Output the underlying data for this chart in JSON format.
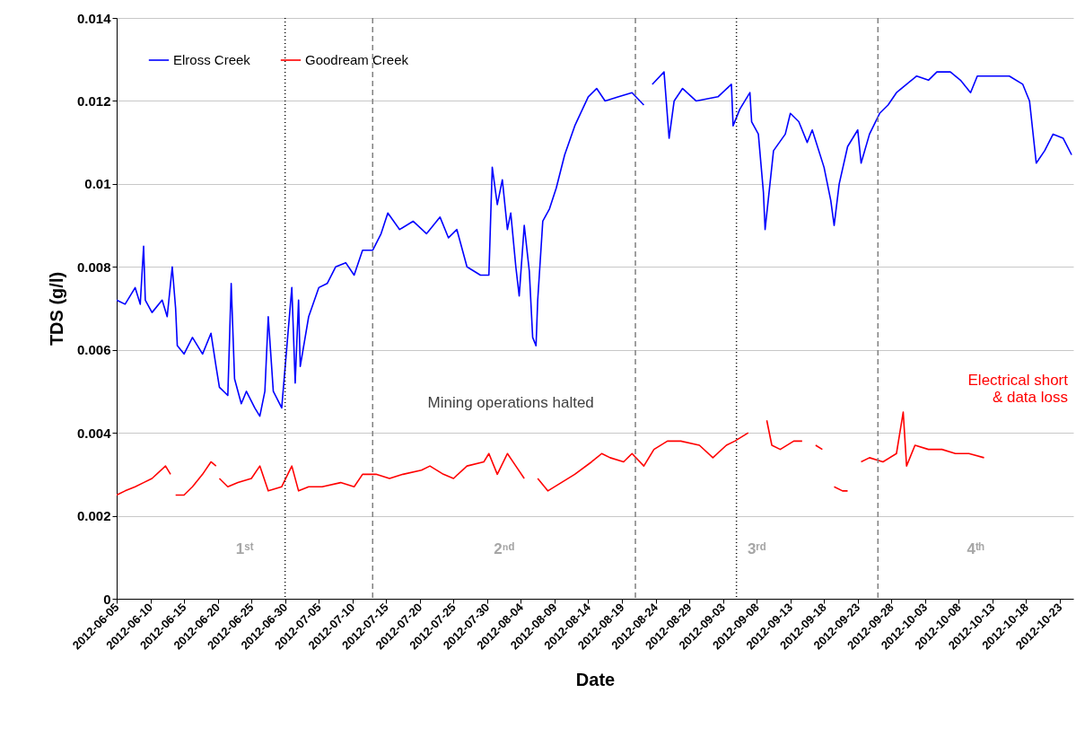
{
  "chart_data": {
    "type": "line",
    "xlabel": "Date",
    "ylabel": "TDS (g/l)",
    "ylim": [
      0,
      0.014
    ],
    "yticks": [
      0,
      0.002,
      0.004,
      0.006,
      0.008,
      0.01,
      0.012,
      0.014
    ],
    "xlim": [
      "2012-06-05",
      "2012-10-25"
    ],
    "xticks": [
      "2012-06-05",
      "2012-06-10",
      "2012-06-15",
      "2012-06-20",
      "2012-06-25",
      "2012-06-30",
      "2012-07-05",
      "2012-07-10",
      "2012-07-15",
      "2012-07-20",
      "2012-07-25",
      "2012-07-30",
      "2012-08-04",
      "2012-08-09",
      "2012-08-14",
      "2012-08-19",
      "2012-08-24",
      "2012-08-29",
      "2012-09-03",
      "2012-09-08",
      "2012-09-13",
      "2012-09-18",
      "2012-09-23",
      "2012-09-28",
      "2012-10-03",
      "2012-10-08",
      "2012-10-13",
      "2012-10-18",
      "2012-10-23"
    ],
    "grid": "y",
    "legend": "top left",
    "line_style": "solid",
    "marker": "none",
    "series": [
      {
        "name": "Elross Creek",
        "color": "#0000ff",
        "x": [
          "2012-06-05T00:00",
          "2012-06-06T06:00",
          "2012-06-07T18:00",
          "2012-06-08T12:00",
          "2012-06-09T00:00",
          "2012-06-09T06:00",
          "2012-06-10T06:00",
          "2012-06-11T18:00",
          "2012-06-12T12:00",
          "2012-06-13T00:00",
          "2012-06-13T06:00",
          "2012-06-13T18:00",
          "2012-06-14T00:00",
          "2012-06-15T00:00",
          "2012-06-16T06:00",
          "2012-06-17T18:00",
          "2012-06-19T00:00",
          "2012-06-19T18:00",
          "2012-06-20T06:00",
          "2012-06-21T12:00",
          "2012-06-22T00:00",
          "2012-06-22T12:00",
          "2012-06-23T12:00",
          "2012-06-24T06:00",
          "2012-06-25T12:00",
          "2012-06-26T06:00",
          "2012-06-27T00:00",
          "2012-06-27T12:00",
          "2012-06-28T06:00",
          "2012-06-29T12:00",
          "2012-07-01T00:00",
          "2012-07-01T12:00",
          "2012-07-02T00:00",
          "2012-07-02T06:00",
          "2012-07-03T12:00",
          "2012-07-05T00:00",
          "2012-07-06T06:00",
          "2012-07-07T12:00",
          "2012-07-09T00:00",
          "2012-07-10T06:00",
          "2012-07-11T12:00",
          "2012-07-13T00:00",
          "2012-07-14T06:00",
          "2012-07-15T06:00",
          "2012-07-17T00:00",
          "2012-07-19T00:00",
          "2012-07-21T00:00",
          "2012-07-23T00:00",
          "2012-07-24T06:00",
          "2012-07-25T12:00",
          "2012-07-27T00:00",
          "2012-07-29T00:00",
          "2012-07-30T06:00",
          "2012-07-30T18:00",
          "2012-07-31T12:00",
          "2012-08-01T06:00",
          "2012-08-02T00:00",
          "2012-08-02T12:00",
          "2012-08-03T06:00",
          "2012-08-03T18:00",
          "2012-08-04T12:00",
          "2012-08-05T06:00",
          "2012-08-05T18:00",
          "2012-08-06T06:00",
          "2012-08-06T12:00",
          "2012-08-07T06:00",
          "2012-08-08T06:00",
          "2012-08-09T06:00",
          "2012-08-10T12:00",
          "2012-08-12T00:00",
          "2012-08-14T00:00",
          "2012-08-15T06:00",
          "2012-08-16T12:00",
          "2012-08-18T12:00",
          "2012-08-20T12:00",
          "2012-08-22T06:00",
          "2012-08-23T00:00",
          "2012-08-23T12:00",
          "2012-08-25T06:00",
          "2012-08-26T00:00",
          "2012-08-26T18:00",
          "2012-08-28T00:00",
          "2012-08-30T00:00",
          "2012-09-02T06:00",
          "2012-09-04T06:00",
          "2012-09-04T12:00",
          "2012-09-05T12:00",
          "2012-09-07T00:00",
          "2012-09-07T06:00",
          "2012-09-08T06:00",
          "2012-09-09T00:00",
          "2012-09-09T06:00",
          "2012-09-10T12:00",
          "2012-09-12T06:00",
          "2012-09-13T00:00",
          "2012-09-14T06:00",
          "2012-09-15T12:00",
          "2012-09-16T06:00",
          "2012-09-18T00:00",
          "2012-09-19T00:00",
          "2012-09-19T12:00",
          "2012-09-20T06:00",
          "2012-09-21T12:00",
          "2012-09-23T00:00",
          "2012-09-23T12:00",
          "2012-09-24T18:00",
          "2012-09-26T06:00",
          "2012-09-27T12:00",
          "2012-09-28T18:00",
          "2012-09-30T06:00",
          "2012-10-01T18:00",
          "2012-10-03T12:00",
          "2012-10-04T18:00",
          "2012-10-06T18:00",
          "2012-10-08T06:00",
          "2012-10-09T18:00",
          "2012-10-10T18:00",
          "2012-10-13T12:00",
          "2012-10-15T12:00",
          "2012-10-17T12:00",
          "2012-10-18T12:00",
          "2012-10-19T12:00",
          "2012-10-20T18:00",
          "2012-10-22T00:00",
          "2012-10-23T12:00",
          "2012-10-24T18:00"
        ],
        "values": [
          0.0072,
          0.0071,
          0.0075,
          0.0071,
          0.0085,
          0.0072,
          0.0069,
          0.0072,
          0.0068,
          0.0076,
          0.008,
          0.007,
          0.0061,
          0.0059,
          0.0063,
          0.0059,
          0.0064,
          0.0056,
          0.0051,
          0.0049,
          0.0076,
          0.0053,
          0.0047,
          0.005,
          0.0046,
          0.0044,
          0.005,
          0.0068,
          0.005,
          0.0046,
          0.0075,
          0.0052,
          0.0072,
          0.0056,
          0.0068,
          0.0075,
          0.0076,
          0.008,
          0.0081,
          0.0078,
          0.0084,
          0.0084,
          0.0088,
          0.0093,
          0.0089,
          0.0091,
          0.0088,
          0.0092,
          0.0087,
          0.0089,
          0.008,
          0.0078,
          0.0078,
          0.0104,
          0.0095,
          0.0101,
          0.0089,
          0.0093,
          0.008,
          0.0073,
          0.009,
          0.0079,
          0.0063,
          0.0061,
          0.0072,
          0.0091,
          0.0094,
          0.0099,
          0.0107,
          0.0114,
          0.0121,
          0.0123,
          0.012,
          0.0121,
          0.0122,
          0.0119,
          null,
          0.0124,
          0.0127,
          0.0111,
          0.012,
          0.0123,
          0.012,
          0.0121,
          0.0124,
          0.0114,
          0.0118,
          0.0122,
          0.0115,
          0.0112,
          0.0098,
          0.0089,
          0.0108,
          0.0112,
          0.0117,
          0.0115,
          0.011,
          0.0113,
          0.0104,
          0.0096,
          0.009,
          0.01,
          0.0109,
          0.0113,
          0.0105,
          0.0112,
          0.0117,
          0.0119,
          0.0122,
          0.0124,
          0.0126,
          0.0125,
          0.0127,
          0.0127,
          0.0125,
          0.0122,
          0.0126,
          0.0126,
          0.0126,
          0.0124,
          0.012,
          0.0105,
          0.0108,
          0.0112,
          0.0111,
          0.0107
        ]
      },
      {
        "name": "Goodream Creek",
        "color": "#ff0000",
        "x": [
          "2012-06-05T00:00",
          "2012-06-06T06:00",
          "2012-06-07T18:00",
          "2012-06-09T00:00",
          "2012-06-10T06:00",
          "2012-06-12T06:00",
          "2012-06-13T00:00",
          "2012-06-13T06:00",
          "2012-06-13T18:00",
          "2012-06-15T00:00",
          "2012-06-16T06:00",
          "2012-06-17T18:00",
          "2012-06-19T00:00",
          "2012-06-19T18:00",
          "2012-06-20T00:00",
          "2012-06-20T06:00",
          "2012-06-21T12:00",
          "2012-06-23T00:00",
          "2012-06-25T00:00",
          "2012-06-26T06:00",
          "2012-06-27T12:00",
          "2012-06-29T12:00",
          "2012-07-01T00:00",
          "2012-07-02T00:00",
          "2012-07-03T12:00",
          "2012-07-05T12:00",
          "2012-07-08T06:00",
          "2012-07-10T06:00",
          "2012-07-11T12:00",
          "2012-07-13T12:00",
          "2012-07-15T12:00",
          "2012-07-17T12:00",
          "2012-07-20T06:00",
          "2012-07-21T12:00",
          "2012-07-23T12:00",
          "2012-07-25T00:00",
          "2012-07-27T00:00",
          "2012-07-29T12:00",
          "2012-07-30T06:00",
          "2012-07-31T12:00",
          "2012-08-02T00:00",
          "2012-08-03T06:00",
          "2012-08-04T12:00",
          "2012-08-05T00:00",
          "2012-08-06T12:00",
          "2012-08-08T00:00",
          "2012-08-10T00:00",
          "2012-08-12T00:00",
          "2012-08-14T12:00",
          "2012-08-16T00:00",
          "2012-08-17T06:00",
          "2012-08-19T06:00",
          "2012-08-20T12:00",
          "2012-08-22T06:00",
          "2012-08-23T18:00",
          "2012-08-25T18:00",
          "2012-08-27T18:00",
          "2012-08-30T12:00",
          "2012-09-01T12:00",
          "2012-09-03T12:00",
          "2012-09-04T18:00",
          "2012-09-06T18:00",
          "2012-09-07T06:00",
          "2012-09-09T12:00",
          "2012-09-10T06:00",
          "2012-09-11T12:00",
          "2012-09-13T12:00",
          "2012-09-14T18:00",
          "2012-09-15T12:00",
          "2012-09-16T18:00",
          "2012-09-17T18:00",
          "2012-09-18T06:00",
          "2012-09-19T12:00",
          "2012-09-20T18:00",
          "2012-09-21T12:00",
          "2012-09-22T00:00",
          "2012-09-23T12:00",
          "2012-09-24T18:00",
          "2012-09-26T18:00",
          "2012-09-28T18:00",
          "2012-09-29T18:00",
          "2012-09-30T06:00",
          "2012-10-01T12:00",
          "2012-10-03T12:00",
          "2012-10-05T12:00",
          "2012-10-07T12:00",
          "2012-10-09T12:00",
          "2012-10-11T18:00"
        ],
        "values": [
          0.0025,
          0.0026,
          0.0027,
          0.0028,
          0.0029,
          0.0032,
          0.003,
          null,
          0.0025,
          0.0025,
          0.0027,
          0.003,
          0.0033,
          0.0032,
          null,
          0.0029,
          0.0027,
          0.0028,
          0.0029,
          0.0032,
          0.0026,
          0.0027,
          0.0032,
          0.0026,
          0.0027,
          0.0027,
          0.0028,
          0.0027,
          0.003,
          0.003,
          0.0029,
          0.003,
          0.0031,
          0.0032,
          0.003,
          0.0029,
          0.0032,
          0.0033,
          0.0035,
          0.003,
          0.0035,
          0.0032,
          0.0029,
          null,
          0.0029,
          0.0026,
          0.0028,
          0.003,
          0.0033,
          0.0035,
          0.0034,
          0.0033,
          0.0035,
          0.0032,
          0.0036,
          0.0038,
          0.0038,
          0.0037,
          0.0034,
          0.0037,
          0.0038,
          0.004,
          null,
          0.0043,
          0.0037,
          0.0036,
          0.0038,
          0.0038,
          null,
          0.0037,
          0.0036,
          null,
          0.0027,
          0.0026,
          0.0026,
          null,
          0.0033,
          0.0034,
          0.0033,
          0.0035,
          0.0045,
          0.0032,
          0.0037,
          0.0036,
          0.0036,
          0.0035,
          0.0035,
          0.0034
        ]
      }
    ],
    "ref_lines": [
      {
        "axis": "x",
        "value": "2012-07-13",
        "color": "#808080",
        "line_style": "dashed"
      },
      {
        "axis": "x",
        "value": "2012-08-21",
        "color": "#808080",
        "line_style": "dashed"
      },
      {
        "axis": "x",
        "value": "2012-09-26",
        "color": "#808080",
        "line_style": "dashed"
      },
      {
        "axis": "x",
        "value": "2012-06-30",
        "color": "#000000",
        "line_style": "dotted"
      },
      {
        "axis": "x",
        "value": "2012-09-05",
        "color": "#000000",
        "line_style": "dotted"
      }
    ],
    "annotations": [
      "1ˢᵗ",
      "2ⁿᵈ",
      "3ʳᵈ",
      "4ᵗʰ",
      "Mining operations halted",
      "Electrical short\n& data loss"
    ]
  }
}
